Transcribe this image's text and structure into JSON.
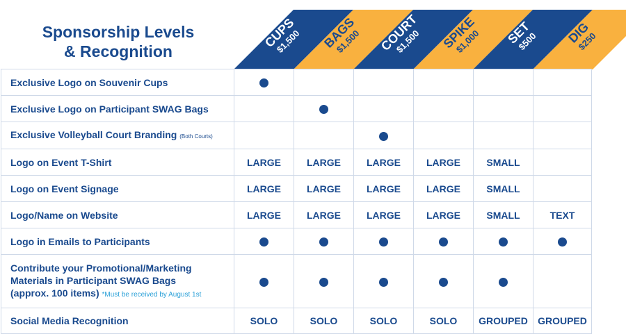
{
  "title": {
    "line1": "Sponsorship Levels",
    "line2": "& Recognition"
  },
  "colors": {
    "navy": "#1a4a8e",
    "gold": "#f9b13f",
    "note_blue": "#2aa0d8",
    "grid": "#cfd9e8"
  },
  "tiers": [
    {
      "name": "CUPS",
      "price": "$1,500",
      "color": "navy"
    },
    {
      "name": "BAGS",
      "price": "$1,500",
      "color": "gold"
    },
    {
      "name": "COURT",
      "price": "$1,500",
      "color": "navy"
    },
    {
      "name": "SPIKE",
      "price": "$1,000",
      "color": "gold"
    },
    {
      "name": "SET",
      "price": "$500",
      "color": "navy"
    },
    {
      "name": "DIG",
      "price": "$250",
      "color": "gold"
    }
  ],
  "rows": [
    {
      "label": "Exclusive Logo on Souvenir Cups",
      "cells": [
        "dot",
        "",
        "",
        "",
        "",
        ""
      ]
    },
    {
      "label": "Exclusive Logo on Participant SWAG Bags",
      "cells": [
        "",
        "dot",
        "",
        "",
        "",
        ""
      ]
    },
    {
      "label": "Exclusive Volleyball Court Branding",
      "note": "(Both Courts)",
      "cells": [
        "",
        "",
        "dot",
        "",
        "",
        ""
      ]
    },
    {
      "label": "Logo on Event T-Shirt",
      "cells": [
        "LARGE",
        "LARGE",
        "LARGE",
        "LARGE",
        "SMALL",
        ""
      ]
    },
    {
      "label": "Logo on Event Signage",
      "cells": [
        "LARGE",
        "LARGE",
        "LARGE",
        "LARGE",
        "SMALL",
        ""
      ]
    },
    {
      "label": "Logo/Name on Website",
      "cells": [
        "LARGE",
        "LARGE",
        "LARGE",
        "LARGE",
        "SMALL",
        "TEXT"
      ]
    },
    {
      "label": "Logo in Emails to Participants",
      "cells": [
        "dot",
        "dot",
        "dot",
        "dot",
        "dot",
        "dot"
      ]
    },
    {
      "label_lines": [
        "Contribute your Promotional/Marketing",
        "Materials in Participant SWAG Bags",
        "(approx. 100 items)"
      ],
      "deadline": "*Must be received by August 1st",
      "cells": [
        "dot",
        "dot",
        "dot",
        "dot",
        "dot",
        ""
      ]
    },
    {
      "label": "Social Media Recognition",
      "cells": [
        "SOLO",
        "SOLO",
        "SOLO",
        "SOLO",
        "GROUPED",
        "GROUPED"
      ]
    }
  ]
}
